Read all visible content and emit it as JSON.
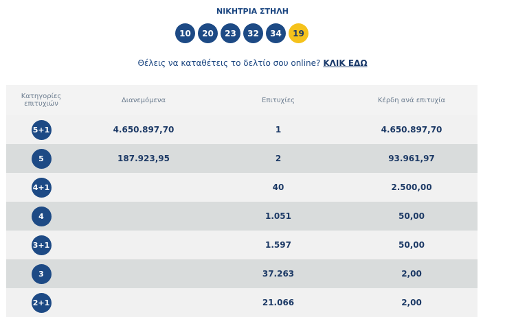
{
  "title": "ΝΙΚΗΤΡΙΑ ΣΤΗΛΗ",
  "numbers": [
    "10",
    "20",
    "23",
    "32",
    "34"
  ],
  "bonus": "19",
  "promo": {
    "text": "Θέλεις να καταθέτεις το δελτίο σου online?",
    "link": "ΚΛΙΚ ΕΔΩ"
  },
  "headers": [
    "Κατηγορίες επιτυχιών",
    "Διανεμόμενα",
    "Επιτυχίες",
    "Κέρδη ανά επιτυχία"
  ],
  "rows": [
    {
      "cat": "5+1",
      "dist": "4.650.897,70",
      "wins": "1",
      "prize": "4.650.897,70"
    },
    {
      "cat": "5",
      "dist": "187.923,95",
      "wins": "2",
      "prize": "93.961,97"
    },
    {
      "cat": "4+1",
      "dist": "",
      "wins": "40",
      "prize": "2.500,00"
    },
    {
      "cat": "4",
      "dist": "",
      "wins": "1.051",
      "prize": "50,00"
    },
    {
      "cat": "3+1",
      "dist": "",
      "wins": "1.597",
      "prize": "50,00"
    },
    {
      "cat": "3",
      "dist": "",
      "wins": "37.263",
      "prize": "2,00"
    },
    {
      "cat": "2+1",
      "dist": "",
      "wins": "21.066",
      "prize": "2,00"
    }
  ],
  "colors": {
    "ball": "#1d4a85",
    "bonus": "#f5c21b"
  }
}
